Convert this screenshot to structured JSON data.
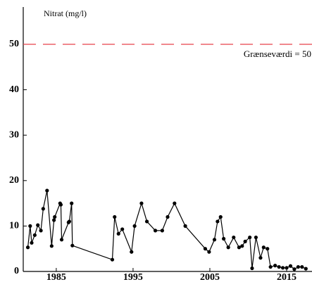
{
  "chart_data": {
    "type": "line",
    "y_label": "Nitrat (mg/l)",
    "x": [
      1981.3,
      1981.6,
      1981.8,
      1982.2,
      1982.6,
      1983.0,
      1983.3,
      1983.8,
      1984.4,
      1984.7,
      1984.8,
      1985.5,
      1985.6,
      1985.7,
      1986.6,
      1986.7,
      1987.0,
      1987.1,
      1992.3,
      1992.6,
      1993.1,
      1993.6,
      1994.8,
      1995.2,
      1996.1,
      1996.8,
      1997.9,
      1998.8,
      1999.5,
      2000.4,
      2001.8,
      2004.4,
      2004.9,
      2005.6,
      2006.0,
      2006.4,
      2006.8,
      2007.4,
      2008.1,
      2008.8,
      2009.2,
      2009.6,
      2010.2,
      2010.5,
      2011.0,
      2011.6,
      2012.0,
      2012.5,
      2012.9,
      2013.5,
      2014.0,
      2014.5,
      2015.0,
      2015.5,
      2016.0,
      2016.5,
      2017.0,
      2017.5
    ],
    "series": [
      {
        "color": "#000000",
        "values": [
          5.3,
          10,
          6.3,
          8,
          10.2,
          9,
          13.8,
          17.8,
          5.6,
          11.3,
          12,
          15,
          14.7,
          7,
          10.8,
          11,
          15,
          5.7,
          2.6,
          12,
          8.3,
          9.3,
          4.3,
          10,
          15,
          11,
          9,
          9,
          12,
          15,
          10,
          5,
          4.3,
          7,
          11,
          12,
          7.2,
          5.3,
          7.5,
          5.3,
          5.6,
          6.6,
          7.5,
          0.7,
          7.5,
          3,
          5.3,
          5,
          1,
          1.3,
          1,
          0.8,
          0.8,
          1.2,
          0.5,
          1,
          1,
          0.6
        ]
      }
    ],
    "threshold": {
      "value": 50,
      "label": "Grænseværdi = 50",
      "color": "#e8414a"
    },
    "xlim": [
      1980.7,
      2018.3
    ],
    "xticks": [
      1985,
      1995,
      2005,
      2015
    ],
    "ylim": [
      0,
      50
    ],
    "yticks": [
      0,
      10,
      20,
      30,
      40,
      50
    ],
    "grid": false
  }
}
